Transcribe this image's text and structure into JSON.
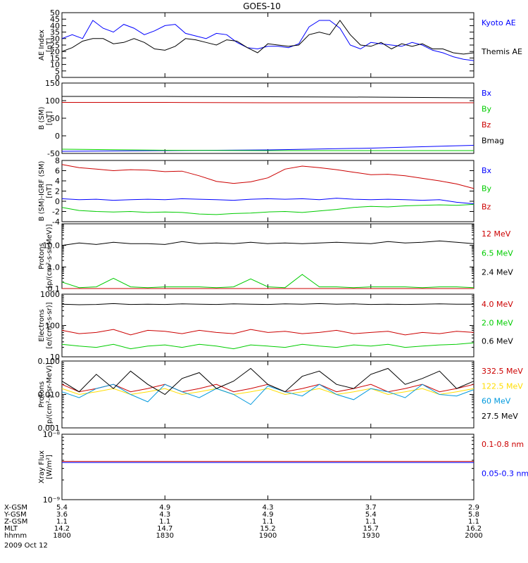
{
  "title": "GOES-10",
  "colors": {
    "black": "#000000",
    "blue": "#0000ff",
    "red": "#cc0000",
    "green": "#00cc00",
    "cyan": "#0099dd",
    "yellow": "#ffdd00"
  },
  "chart_data": [
    {
      "type": "line",
      "name": "ae",
      "ylabel": "AE Index",
      "yunit": "[nT]",
      "scale": "linear",
      "ylim": [
        0,
        50
      ],
      "ticks": [
        0,
        5,
        10,
        15,
        20,
        25,
        30,
        35,
        40,
        45,
        50
      ],
      "tick_labels": [
        "0",
        "5",
        "10",
        "15",
        "20",
        "25",
        "30",
        "35",
        "40",
        "45",
        "50"
      ],
      "x": [
        1800,
        1803,
        1806,
        1809,
        1812,
        1815,
        1818,
        1821,
        1824,
        1827,
        1830,
        1833,
        1836,
        1839,
        1842,
        1845,
        1848,
        1851,
        1854,
        1857,
        1900,
        1903,
        1906,
        1909,
        1912,
        1915,
        1918,
        1921,
        1924,
        1927,
        1930,
        1933,
        1936,
        1939,
        1942,
        1945,
        1948,
        1951,
        1954,
        1957,
        2000
      ],
      "series": [
        {
          "name": "Kyoto AE",
          "color": "blue",
          "values": [
            30,
            33,
            30,
            44,
            38,
            35,
            41,
            38,
            33,
            36,
            40,
            41,
            34,
            32,
            30,
            34,
            33,
            27,
            23,
            22,
            24,
            24,
            23,
            26,
            39,
            44,
            44,
            38,
            25,
            22,
            27,
            26,
            25,
            24,
            27,
            25,
            21,
            19,
            16,
            14,
            13
          ]
        },
        {
          "name": "Themis AE",
          "color": "black",
          "values": [
            20,
            23,
            28,
            30,
            30,
            26,
            27,
            30,
            27,
            22,
            21,
            24,
            30,
            29,
            27,
            25,
            29,
            28,
            23,
            19,
            26,
            25,
            24,
            25,
            33,
            35,
            33,
            44,
            33,
            25,
            24,
            27,
            22,
            26,
            24,
            26,
            22,
            22,
            19,
            18,
            19
          ]
        }
      ]
    },
    {
      "type": "line",
      "name": "b",
      "ylabel": "B (SM)",
      "yunit": "[nT]",
      "scale": "linear",
      "ylim": [
        -50,
        150
      ],
      "ticks": [
        -50,
        0,
        50,
        100,
        150
      ],
      "tick_labels": [
        "-50",
        "0",
        "50",
        "100",
        "150"
      ],
      "x": [
        1800,
        1830,
        1900,
        1930,
        2000
      ],
      "series": [
        {
          "name": "Bx",
          "color": "blue",
          "values": [
            -44,
            -42,
            -40,
            -35,
            -27
          ]
        },
        {
          "name": "By",
          "color": "green",
          "values": [
            -38,
            -41,
            -42,
            -42,
            -42
          ]
        },
        {
          "name": "Bz",
          "color": "red",
          "values": [
            95,
            95,
            94,
            94,
            94
          ]
        },
        {
          "name": "Bmag",
          "color": "black",
          "values": [
            112,
            112,
            111,
            110,
            108
          ]
        }
      ]
    },
    {
      "type": "line",
      "name": "bdiff",
      "ylabel": "B (SM)-IGRF (SM)",
      "yunit": "[nT]",
      "scale": "linear",
      "ylim": [
        -4,
        8
      ],
      "ticks": [
        -4,
        -2,
        0,
        2,
        4,
        6,
        8
      ],
      "tick_labels": [
        "-4",
        "-2",
        "0",
        "2",
        "4",
        "6",
        "8"
      ],
      "x": [
        1800,
        1805,
        1810,
        1815,
        1820,
        1825,
        1830,
        1835,
        1840,
        1845,
        1850,
        1855,
        1900,
        1905,
        1910,
        1915,
        1920,
        1925,
        1930,
        1935,
        1940,
        1945,
        1950,
        1955,
        2000
      ],
      "series": [
        {
          "name": "Bx",
          "color": "blue",
          "values": [
            0.5,
            0.3,
            0.4,
            0.2,
            0.3,
            0.4,
            0.3,
            0.5,
            0.4,
            0.3,
            0.2,
            0.4,
            0.5,
            0.4,
            0.5,
            0.3,
            0.6,
            0.4,
            0.3,
            0.4,
            0.3,
            0.2,
            0.3,
            -0.2,
            -0.5
          ]
        },
        {
          "name": "By",
          "color": "green",
          "values": [
            -1.2,
            -1.8,
            -2.0,
            -2.1,
            -2.0,
            -2.2,
            -2.1,
            -2.2,
            -2.5,
            -2.6,
            -2.4,
            -2.3,
            -2.1,
            -2.0,
            -2.2,
            -1.9,
            -1.6,
            -1.2,
            -1.0,
            -1.1,
            -0.9,
            -0.8,
            -0.7,
            -0.8,
            -0.6
          ]
        },
        {
          "name": "Bz",
          "color": "red",
          "values": [
            7.2,
            6.6,
            6.3,
            6.0,
            6.2,
            6.1,
            5.8,
            5.9,
            5.0,
            3.9,
            3.5,
            3.8,
            4.6,
            6.3,
            6.9,
            6.6,
            6.2,
            5.7,
            5.2,
            5.3,
            5.0,
            4.5,
            4.0,
            3.4,
            2.5
          ]
        }
      ]
    },
    {
      "type": "line",
      "name": "protons",
      "ylabel": "Protons",
      "yunit": "[p/(cm²-s-sr-MeV)]",
      "scale": "log",
      "ylim": [
        0.1,
        100
      ],
      "ticks": [
        0.1,
        1,
        10
      ],
      "tick_labels": [
        "0.1",
        "1.0",
        "10.0"
      ],
      "x": [
        1800,
        1805,
        1810,
        1815,
        1820,
        1825,
        1830,
        1835,
        1840,
        1845,
        1850,
        1855,
        1900,
        1905,
        1910,
        1915,
        1920,
        1925,
        1930,
        1935,
        1940,
        1945,
        1950,
        1955,
        2000
      ],
      "series": [
        {
          "name": "12 MeV",
          "color": "red",
          "values": [
            0.1,
            0.1,
            0.1,
            0.1,
            0.1,
            0.1,
            0.1,
            0.1,
            0.1,
            0.1,
            0.1,
            0.1,
            0.1,
            0.1,
            0.1,
            0.1,
            0.1,
            0.1,
            0.1,
            0.1,
            0.1,
            0.1,
            0.1,
            0.1,
            0.1
          ]
        },
        {
          "name": "6.5 MeV",
          "color": "green",
          "values": [
            0.2,
            0.11,
            0.12,
            0.3,
            0.12,
            0.11,
            0.12,
            0.12,
            0.12,
            0.11,
            0.12,
            0.28,
            0.12,
            0.11,
            0.45,
            0.12,
            0.12,
            0.11,
            0.12,
            0.12,
            0.12,
            0.11,
            0.12,
            0.12,
            0.11
          ]
        },
        {
          "name": "2.4 MeV",
          "color": "black",
          "values": [
            10,
            13,
            11,
            14,
            12,
            12,
            11,
            15,
            12,
            13,
            12,
            14,
            12,
            13,
            12,
            13,
            14,
            13,
            12,
            15,
            13,
            14,
            16,
            14,
            12
          ]
        }
      ]
    },
    {
      "type": "line",
      "name": "electrons",
      "ylabel": "Electrons",
      "yunit": "[e/(cm²-s-sr)]",
      "scale": "log",
      "ylim": [
        10,
        1000
      ],
      "ticks": [
        10,
        100,
        1000
      ],
      "tick_labels": [
        "10",
        "100",
        "1000"
      ],
      "x": [
        1800,
        1805,
        1810,
        1815,
        1820,
        1825,
        1830,
        1835,
        1840,
        1845,
        1850,
        1855,
        1900,
        1905,
        1910,
        1915,
        1920,
        1925,
        1930,
        1935,
        1940,
        1945,
        1950,
        1955,
        2000
      ],
      "series": [
        {
          "name": "4.0 MeV",
          "color": "red",
          "values": [
            70,
            55,
            60,
            75,
            50,
            70,
            65,
            55,
            70,
            60,
            55,
            75,
            60,
            65,
            55,
            60,
            70,
            55,
            60,
            65,
            50,
            60,
            55,
            65,
            60
          ]
        },
        {
          "name": "2.0 MeV",
          "color": "green",
          "values": [
            25,
            22,
            20,
            25,
            18,
            22,
            24,
            20,
            25,
            22,
            18,
            24,
            22,
            20,
            25,
            22,
            20,
            24,
            22,
            25,
            20,
            22,
            24,
            25,
            28
          ]
        },
        {
          "name": "0.6 MeV",
          "color": "black",
          "values": [
            480,
            460,
            470,
            500,
            470,
            480,
            470,
            490,
            480,
            470,
            490,
            480,
            470,
            490,
            480,
            500,
            480,
            490,
            470,
            480,
            470,
            480,
            490,
            480,
            480
          ]
        }
      ]
    },
    {
      "type": "line",
      "name": "hiprotons",
      "ylabel": "Protons",
      "yunit": "[p/(cm²-s-sr-MeV)]",
      "scale": "log",
      "ylim": [
        0.001,
        0.1
      ],
      "ticks": [
        0.001,
        0.01,
        0.1
      ],
      "tick_labels": [
        "0.001",
        "0.010",
        "0.100"
      ],
      "x": [
        1800,
        1805,
        1810,
        1815,
        1820,
        1825,
        1830,
        1835,
        1840,
        1845,
        1850,
        1855,
        1900,
        1905,
        1910,
        1915,
        1920,
        1925,
        1930,
        1935,
        1940,
        1945,
        1950,
        1955,
        2000
      ],
      "series": [
        {
          "name": "332.5 MeV",
          "color": "red",
          "values": [
            0.02,
            0.012,
            0.015,
            0.02,
            0.012,
            0.015,
            0.02,
            0.012,
            0.015,
            0.02,
            0.012,
            0.015,
            0.02,
            0.012,
            0.015,
            0.02,
            0.012,
            0.015,
            0.02,
            0.012,
            0.015,
            0.02,
            0.012,
            0.015,
            0.02
          ]
        },
        {
          "name": "122.5 MeV",
          "color": "yellow",
          "values": [
            0.015,
            0.01,
            0.012,
            0.015,
            0.01,
            0.012,
            0.015,
            0.01,
            0.012,
            0.015,
            0.01,
            0.012,
            0.015,
            0.01,
            0.012,
            0.015,
            0.01,
            0.012,
            0.015,
            0.01,
            0.012,
            0.015,
            0.01,
            0.012,
            0.015
          ]
        },
        {
          "name": "60 MeV",
          "color": "cyan",
          "values": [
            0.012,
            0.008,
            0.015,
            0.02,
            0.01,
            0.006,
            0.02,
            0.012,
            0.008,
            0.015,
            0.01,
            0.005,
            0.018,
            0.012,
            0.009,
            0.02,
            0.01,
            0.007,
            0.015,
            0.012,
            0.008,
            0.02,
            0.01,
            0.009,
            0.014
          ]
        },
        {
          "name": "27.5 MeV",
          "color": "black",
          "values": [
            0.025,
            0.012,
            0.04,
            0.015,
            0.05,
            0.02,
            0.01,
            0.03,
            0.045,
            0.015,
            0.025,
            0.06,
            0.02,
            0.012,
            0.035,
            0.05,
            0.02,
            0.015,
            0.04,
            0.06,
            0.02,
            0.03,
            0.05,
            0.015,
            0.025
          ]
        }
      ]
    },
    {
      "type": "line",
      "name": "xray",
      "ylabel": "Xray Flux",
      "yunit": "[W/m²]",
      "scale": "log",
      "ylim": [
        1e-09,
        1e-08
      ],
      "ticks": [
        1e-09,
        1e-08
      ],
      "tick_labels": [
        "10⁻⁹",
        "10⁻⁸"
      ],
      "x": [
        1800,
        1830,
        1900,
        1930,
        2000
      ],
      "series": [
        {
          "name": "0.1-0.8 nm",
          "color": "red",
          "values": [
            3.85e-09,
            3.85e-09,
            3.85e-09,
            3.85e-09,
            3.85e-09
          ]
        },
        {
          "name": "0.05-0.3 nm",
          "color": "blue",
          "values": [
            3.7e-09,
            3.7e-09,
            3.7e-09,
            3.7e-09,
            3.7e-09
          ]
        }
      ]
    }
  ],
  "xaxis": {
    "ticks": [
      1800,
      1830,
      1900,
      1930,
      2000
    ],
    "rows": [
      {
        "label": "X-GSM",
        "values": [
          "5.4",
          "4.9",
          "4.3",
          "3.7",
          "2.9"
        ]
      },
      {
        "label": "Y-GSM",
        "values": [
          "3.6",
          "4.3",
          "4.9",
          "5.4",
          "5.8"
        ]
      },
      {
        "label": "Z-GSM",
        "values": [
          "1.1",
          "1.1",
          "1.1",
          "1.1",
          "1.1"
        ]
      },
      {
        "label": "MLT",
        "values": [
          "14.2",
          "14.7",
          "15.2",
          "15.7",
          "16.2"
        ]
      },
      {
        "label": "hhmm",
        "values": [
          "1800",
          "1830",
          "1900",
          "1930",
          "2000"
        ]
      }
    ],
    "date": "2009 Oct 12"
  }
}
